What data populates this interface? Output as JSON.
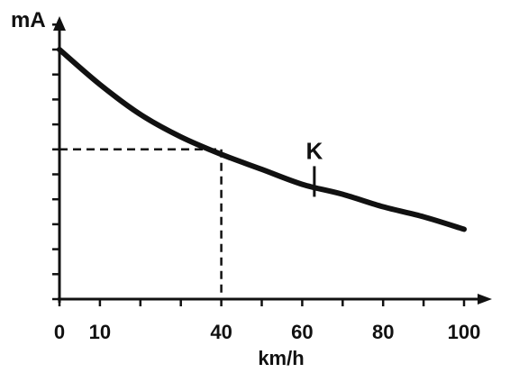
{
  "chart_data": {
    "type": "line",
    "ylabel": "mA",
    "xlabel": "km/h",
    "x_ticks": [
      0,
      10,
      40,
      60,
      80,
      100
    ],
    "x_minor_ticks": [
      0,
      10,
      20,
      30,
      40,
      50,
      60,
      70,
      80,
      90,
      100
    ],
    "xlim": [
      0,
      110
    ],
    "ylim": [
      0,
      1.1
    ],
    "y_tick_count": 11,
    "grid": false,
    "series": [
      {
        "name": "K",
        "x": [
          0,
          10,
          20,
          30,
          40,
          50,
          60,
          70,
          80,
          90,
          100
        ],
        "y": [
          1.0,
          0.86,
          0.74,
          0.65,
          0.58,
          0.52,
          0.46,
          0.42,
          0.37,
          0.33,
          0.28
        ]
      }
    ],
    "annotations": [
      {
        "type": "dashed-guide",
        "x": 40,
        "y": 0.6
      },
      {
        "type": "curve-label",
        "text": "K",
        "x": 63,
        "y": 0.41
      }
    ]
  }
}
